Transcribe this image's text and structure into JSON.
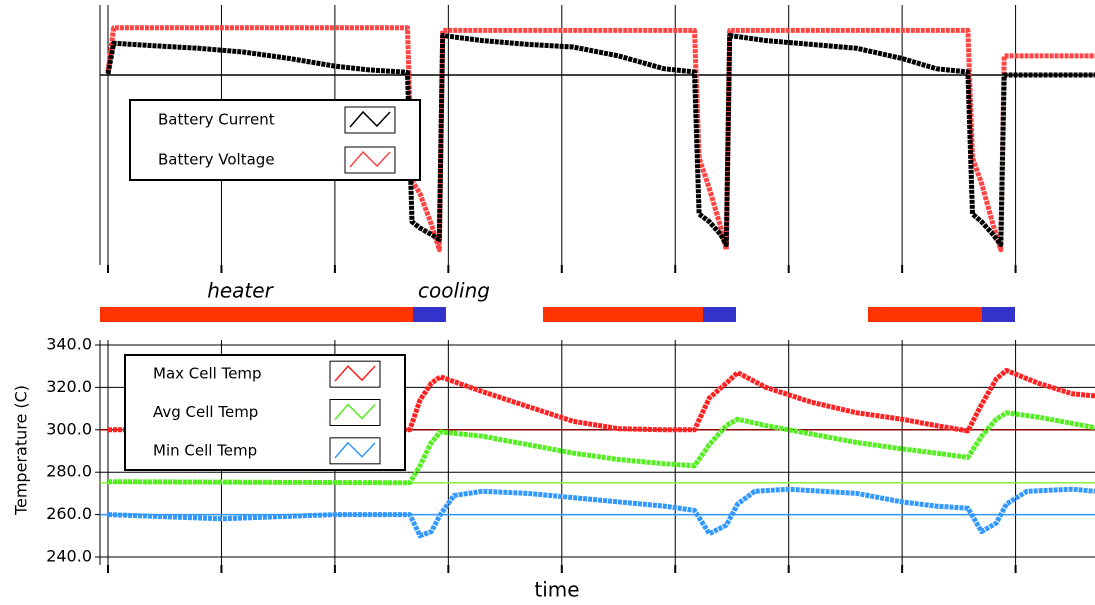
{
  "chart_data": [
    {
      "type": "line",
      "xlim": [
        0,
        8.7
      ],
      "xticks": [
        0,
        1,
        2,
        3,
        4,
        5,
        6,
        7,
        8
      ],
      "ylim": [
        0,
        10
      ],
      "grid": true,
      "legend": "upper left",
      "hlines": [
        {
          "value": 7.45,
          "color": "#000000"
        }
      ],
      "x": [
        0,
        0.05,
        0.4,
        0.8,
        1.2,
        1.6,
        2.0,
        2.3,
        2.6,
        2.64,
        2.68,
        2.75,
        2.85,
        2.92,
        2.95,
        3.3,
        3.7,
        4.1,
        4.5,
        4.9,
        5.17,
        5.21,
        5.3,
        5.4,
        5.45,
        5.48,
        5.8,
        6.2,
        6.6,
        7.0,
        7.3,
        7.58,
        7.62,
        7.7,
        7.8,
        7.87,
        7.9,
        8.3,
        8.7
      ],
      "series": [
        {
          "name": "Battery Current",
          "color": "#000000",
          "values": [
            7.5,
            8.7,
            8.6,
            8.5,
            8.35,
            8.1,
            7.8,
            7.65,
            7.57,
            7.55,
            1.7,
            1.45,
            1.2,
            1.0,
            9.0,
            8.8,
            8.65,
            8.55,
            8.2,
            7.7,
            7.57,
            2.0,
            1.7,
            1.2,
            0.8,
            9.0,
            8.8,
            8.65,
            8.5,
            8.1,
            7.7,
            7.57,
            2.0,
            1.7,
            1.2,
            0.8,
            7.45,
            7.45,
            7.45
          ]
        },
        {
          "name": "Battery Voltage",
          "color": "#ff4444",
          "values": [
            7.6,
            9.3,
            9.3,
            9.3,
            9.3,
            9.3,
            9.3,
            9.3,
            9.3,
            9.3,
            3.3,
            2.8,
            1.6,
            0.6,
            9.2,
            9.2,
            9.2,
            9.2,
            9.2,
            9.2,
            9.2,
            4.2,
            3.0,
            1.5,
            0.6,
            9.2,
            9.2,
            9.2,
            9.2,
            9.2,
            9.2,
            9.2,
            4.2,
            3.2,
            1.6,
            0.6,
            8.2,
            8.2,
            8.2
          ]
        }
      ]
    },
    {
      "type": "line",
      "xlabel": "time",
      "ylabel": "Temperature (C)",
      "annotations": [
        "heater",
        "cooling"
      ],
      "legend": "upper left",
      "xlim": [
        0,
        8.7
      ],
      "xticks": [
        0,
        1,
        2,
        3,
        4,
        5,
        6,
        7,
        8
      ],
      "ylim": [
        240,
        340
      ],
      "grid": true,
      "yticks": [
        {
          "value": 240,
          "label": "240.0"
        },
        {
          "value": 260,
          "label": "260.0"
        },
        {
          "value": 280,
          "label": "280.0"
        },
        {
          "value": 300,
          "label": "300.0"
        },
        {
          "value": 320,
          "label": "320.0"
        },
        {
          "value": 340,
          "label": "340.0"
        }
      ],
      "hlines": [
        {
          "value": 300,
          "color": "#8b0000"
        },
        {
          "value": 275,
          "color": "#88ee44"
        },
        {
          "value": 260,
          "color": "#3399ff"
        }
      ],
      "series": [
        {
          "name": "Max Cell Temp",
          "color": "#ff2222",
          "x": [
            0,
            2.66,
            2.75,
            2.85,
            2.93,
            3.3,
            3.7,
            4.1,
            4.5,
            4.9,
            5.17,
            5.3,
            5.45,
            5.55,
            5.8,
            6.2,
            6.6,
            7.0,
            7.3,
            7.58,
            7.7,
            7.83,
            7.92,
            8.2,
            8.5,
            8.7
          ],
          "values": [
            300,
            300,
            314,
            322,
            325,
            318,
            311,
            304,
            300.5,
            300,
            300,
            315,
            322,
            327,
            320,
            313,
            308,
            305,
            302,
            299.5,
            312,
            324,
            328,
            322,
            317,
            316
          ]
        },
        {
          "name": "Avg Cell Temp",
          "color": "#55ee22",
          "x": [
            0,
            2.66,
            2.75,
            2.85,
            2.93,
            3.3,
            3.7,
            4.1,
            4.5,
            4.9,
            5.17,
            5.3,
            5.45,
            5.55,
            5.8,
            6.2,
            6.6,
            7.0,
            7.3,
            7.58,
            7.7,
            7.83,
            7.92,
            8.2,
            8.5,
            8.7
          ],
          "values": [
            275.5,
            275,
            283,
            294,
            299,
            297,
            293,
            289,
            286,
            284,
            283,
            293,
            302,
            305,
            302,
            298,
            294,
            291,
            289,
            287,
            297,
            305,
            308,
            306,
            303,
            301
          ]
        },
        {
          "name": "Min Cell Temp",
          "color": "#3399ff",
          "x": [
            0,
            0.5,
            1.0,
            1.5,
            2.0,
            2.66,
            2.75,
            2.85,
            2.93,
            3.05,
            3.3,
            3.7,
            4.1,
            4.5,
            4.9,
            5.17,
            5.3,
            5.45,
            5.55,
            5.7,
            6.0,
            6.6,
            7.0,
            7.3,
            7.58,
            7.7,
            7.83,
            7.92,
            8.1,
            8.5,
            8.7
          ],
          "values": [
            260,
            259,
            258,
            259,
            260,
            260,
            250,
            252,
            260,
            269,
            271,
            270,
            268,
            266,
            264,
            262,
            251,
            255,
            265,
            271,
            272,
            270,
            266,
            264,
            263,
            252,
            256,
            265,
            271,
            272,
            271
          ]
        }
      ]
    }
  ]
}
